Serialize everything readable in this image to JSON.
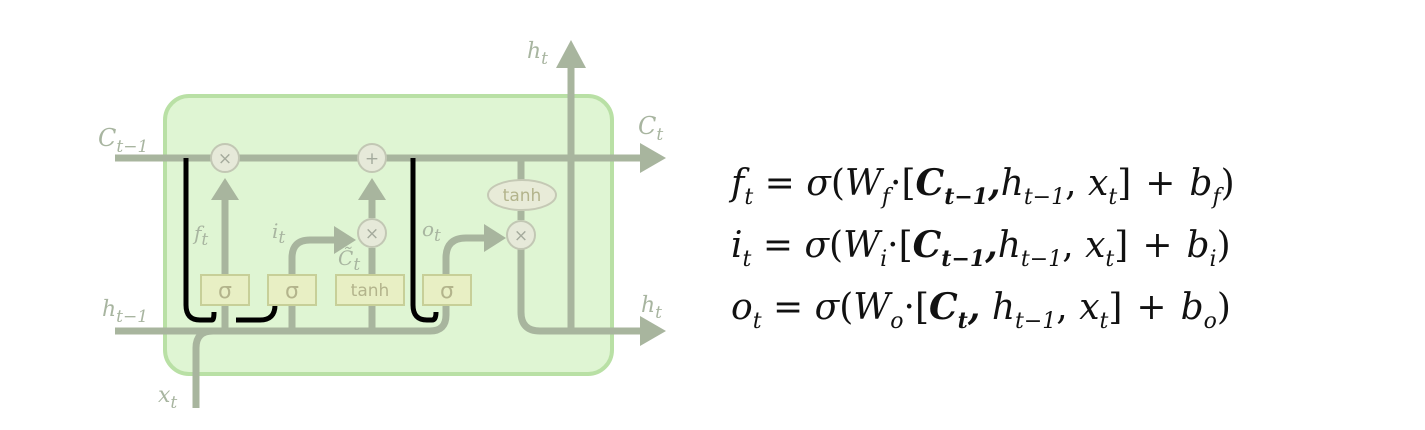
{
  "diagram": {
    "labels": {
      "c_prev": "C",
      "c_prev_sub": "t−1",
      "c_out": "C",
      "c_out_sub": "t",
      "h_top": "h",
      "h_top_sub": "t",
      "h_prev": "h",
      "h_prev_sub": "t−1",
      "h_out": "h",
      "h_out_sub": "t",
      "x_in": "x",
      "x_in_sub": "t",
      "f_label": "f",
      "f_label_sub": "t",
      "i_label": "i",
      "i_label_sub": "t",
      "c_tilde": "C̃",
      "c_tilde_sub": "t",
      "o_label": "o",
      "o_label_sub": "t"
    },
    "gates": {
      "sigma1": "σ",
      "sigma2": "σ",
      "tanh": "tanh",
      "sigma3": "σ",
      "tanh_oval": "tanh"
    },
    "ops": {
      "mult": "×",
      "plus": "+"
    },
    "colors": {
      "cell_fill": "#dff5d3",
      "cell_stroke": "#b9e0a5",
      "flow": "#a8b59e",
      "gate_fill": "#e8efc4",
      "gate_stroke": "#c7cf98",
      "peephole": "#000000"
    }
  },
  "equations": [
    {
      "lhs": "f",
      "lhs_sub": "t",
      "eq": "=",
      "sigma": "σ",
      "open": "(",
      "w": "W",
      "w_sub": "f",
      "dot": "·",
      "lbr": "[",
      "bold": "C",
      "bold_sub": "t−1",
      "comma1": ",",
      "h": "h",
      "h_sub": "t−1",
      "comma2": ",",
      "x": "x",
      "x_sub": "t",
      "rbr": "]",
      "plus": "+",
      "b": "b",
      "b_sub": "f",
      "close": ")"
    },
    {
      "lhs": "i",
      "lhs_sub": "t",
      "eq": "=",
      "sigma": "σ",
      "open": "(",
      "w": "W",
      "w_sub": "i",
      "dot": "·",
      "lbr": "[",
      "bold": "C",
      "bold_sub": "t−1",
      "comma1": ",",
      "h": "h",
      "h_sub": "t−1",
      "comma2": ",",
      "x": "x",
      "x_sub": "t",
      "rbr": "]",
      "plus": "+",
      "b": "b",
      "b_sub": "i",
      "close": ")"
    },
    {
      "lhs": "o",
      "lhs_sub": "t",
      "eq": "=",
      "sigma": "σ",
      "open": "(",
      "w": "W",
      "w_sub": "o",
      "dot": "·",
      "lbr": "[",
      "bold": "C",
      "bold_sub": "t",
      "comma1": ",",
      "h": "h",
      "h_sub": "t−1",
      "comma2": ",",
      "x": "x",
      "x_sub": "t",
      "rbr": "]",
      "plus": "+",
      "b": "b",
      "b_sub": "o",
      "close": ")"
    }
  ]
}
